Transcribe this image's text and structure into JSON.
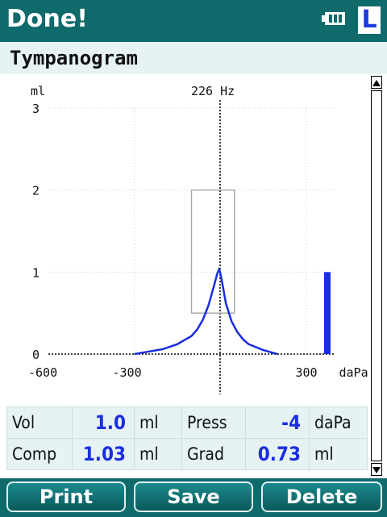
{
  "header": {
    "title": "Done!",
    "ear_indicator": "L",
    "battery_icon": "battery-icon"
  },
  "section": {
    "title": "Tympanogram"
  },
  "chart_data": {
    "type": "line",
    "frequency_label": "226 Hz",
    "ylabel": "ml",
    "xlabel": "daPa",
    "x_ticks": [
      "-600",
      "-300",
      "300"
    ],
    "y_ticks": [
      "0",
      "1",
      "2",
      "3"
    ],
    "xlim": [
      -600,
      400
    ],
    "ylim": [
      0,
      3
    ],
    "series": [
      {
        "x": [
          -300,
          -250,
          -200,
          -150,
          -100,
          -80,
          -60,
          -40,
          -20,
          -10,
          -4,
          0,
          10,
          20,
          40,
          60,
          80,
          100,
          150,
          200
        ],
        "values": [
          0.0,
          0.03,
          0.06,
          0.12,
          0.22,
          0.3,
          0.42,
          0.6,
          0.85,
          0.98,
          1.03,
          1.0,
          0.82,
          0.62,
          0.4,
          0.27,
          0.18,
          0.12,
          0.05,
          0.0
        ]
      }
    ],
    "normal_box": {
      "x_range": [
        -100,
        50
      ],
      "y_range": [
        0.5,
        2.0
      ]
    },
    "volume_bar_value": 1.0,
    "colors": {
      "curve": "#1a2de0",
      "bar": "#1a2de0",
      "box": "#aaaaaa"
    }
  },
  "results": {
    "rows": [
      {
        "label1": "Vol",
        "value1": "1.0",
        "unit1": "ml",
        "label2": "Press",
        "value2": "-4",
        "unit2": "daPa"
      },
      {
        "label1": "Comp",
        "value1": "1.03",
        "unit1": "ml",
        "label2": "Grad",
        "value2": "0.73",
        "unit2": "ml"
      }
    ]
  },
  "buttons": {
    "print": "Print",
    "save": "Save",
    "delete": "Delete"
  },
  "colors": {
    "bar": "#0f6a6c",
    "value_text": "#1a2de0"
  }
}
